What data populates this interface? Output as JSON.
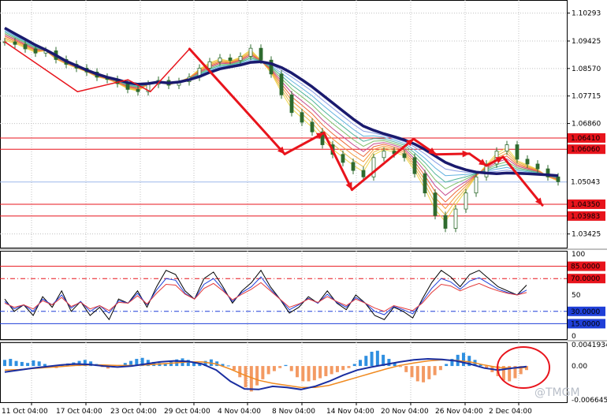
{
  "watermark": "@TMGM",
  "colors": {
    "background": "#ffffff",
    "grid": "#c0c0c0",
    "separator": "#000000",
    "candle": "#2f6b2f",
    "ema_slow": "#1a1a6e",
    "zigzag": "#e8141c",
    "resistance_line": "#e8141c",
    "current_price_line": "#9db8ea",
    "rsi_black": "#000000",
    "rsi_blue": "#1f3fd8",
    "rsi_red": "#e33a3a",
    "macd_hist_pos": "#2f8fe0",
    "macd_hist_neg": "#f39a63",
    "macd_line": "#1a2ea0",
    "macd_signal": "#f08a20",
    "highlight_circle": "#e8141c"
  },
  "chart_data": [
    {
      "type": "candlestick",
      "title": "",
      "x_ticks": [
        "11 Oct 04:00",
        "17 Oct 04:00",
        "23 Oct 04:00",
        "29 Oct 04:00",
        "4 Nov 04:00",
        "8 Nov 04:00",
        "14 Nov 04:00",
        "20 Nov 04:00",
        "26 Nov 04:00",
        "2 Dec 04:00"
      ],
      "y_ticks": [
        "1.10293",
        "1.09425",
        "1.08570",
        "1.07715",
        "1.06860",
        "1.03425"
      ],
      "ylim": [
        1.03,
        1.107
      ],
      "close": [
        1.094,
        1.0932,
        1.0918,
        1.0905,
        1.0912,
        1.0885,
        1.087,
        1.0858,
        1.0846,
        1.083,
        1.0823,
        1.081,
        1.0792,
        1.0785,
        1.0808,
        1.082,
        1.0805,
        1.0816,
        1.083,
        1.0858,
        1.0878,
        1.089,
        1.0882,
        1.0895,
        1.092,
        1.0883,
        1.084,
        1.0775,
        1.072,
        1.069,
        1.066,
        1.062,
        1.059,
        1.0565,
        1.054,
        1.052,
        1.058,
        1.06,
        1.0592,
        1.058,
        1.053,
        1.047,
        1.04,
        1.036,
        1.042,
        1.047,
        1.052,
        1.056,
        1.06,
        1.062,
        1.0575,
        1.056,
        1.0545,
        1.052,
        1.0505
      ],
      "ema_slow": [
        1.0983,
        1.0965,
        1.0948,
        1.093,
        1.0915,
        1.0898,
        1.088,
        1.0866,
        1.0852,
        1.084,
        1.083,
        1.0822,
        1.0813,
        1.0808,
        1.081,
        1.0815,
        1.0812,
        1.0815,
        1.0822,
        1.0832,
        1.0845,
        1.0856,
        1.0862,
        1.0868,
        1.0876,
        1.0878,
        1.0872,
        1.086,
        1.0843,
        1.0822,
        1.08,
        1.0775,
        1.075,
        1.0725,
        1.07,
        1.0678,
        1.0665,
        1.0654,
        1.0645,
        1.0635,
        1.0622,
        1.0605,
        1.0585,
        1.0565,
        1.0552,
        1.0542,
        1.0535,
        1.0532,
        1.053,
        1.0532,
        1.0531,
        1.053,
        1.0528,
        1.0526,
        1.0524
      ],
      "zigzag": [
        [
          0,
          1.094
        ],
        [
          13,
          1.0785
        ],
        [
          22,
          1.0822
        ],
        [
          26,
          1.0785
        ],
        [
          33,
          1.0918
        ],
        [
          50,
          1.0591
        ],
        [
          57,
          1.0657
        ],
        [
          62,
          1.048
        ],
        [
          73,
          1.0638
        ],
        [
          77,
          1.059
        ],
        [
          83,
          1.0592
        ],
        [
          86,
          1.0555
        ],
        [
          89,
          1.0582
        ],
        [
          96,
          1.0432
        ]
      ],
      "horizontal_levels": [
        {
          "label": "1.06410",
          "value": 1.0641,
          "kind": "resistance"
        },
        {
          "label": "1.06060",
          "value": 1.0606,
          "kind": "resistance"
        },
        {
          "label": "1.05043",
          "value": 1.05043,
          "kind": "current"
        },
        {
          "label": "1.04350",
          "value": 1.0435,
          "kind": "support"
        },
        {
          "label": "1.03983",
          "value": 1.03983,
          "kind": "support"
        }
      ]
    },
    {
      "type": "line",
      "title": "",
      "y_ticks": [
        "100",
        "50",
        "0"
      ],
      "ylim": [
        0,
        100
      ],
      "levels": [
        {
          "label": "85.0000",
          "value": 85,
          "style": "solid"
        },
        {
          "label": "70.0000",
          "value": 70,
          "style": "dashed"
        },
        {
          "label": "30.0000",
          "value": 30,
          "style": "dashed"
        },
        {
          "label": "15.0000",
          "value": 15,
          "style": "solid"
        }
      ],
      "series": [
        {
          "values": [
            45,
            30,
            38,
            25,
            48,
            35,
            55,
            30,
            42,
            25,
            35,
            20,
            45,
            40,
            55,
            35,
            60,
            80,
            75,
            55,
            45,
            70,
            78,
            60,
            40,
            55,
            65,
            80,
            60,
            45,
            28,
            35,
            48,
            40,
            55,
            40,
            32,
            50,
            40,
            25,
            20,
            35,
            30,
            22,
            45,
            65,
            80,
            72,
            60,
            75,
            80,
            70,
            60,
            55,
            50,
            62
          ]
        },
        {
          "values": [
            42,
            33,
            38,
            30,
            45,
            38,
            50,
            34,
            42,
            30,
            37,
            28,
            43,
            40,
            52,
            38,
            56,
            70,
            68,
            52,
            45,
            63,
            70,
            57,
            42,
            53,
            60,
            72,
            57,
            45,
            32,
            38,
            46,
            40,
            51,
            41,
            35,
            47,
            40,
            30,
            26,
            36,
            32,
            27,
            42,
            58,
            70,
            66,
            57,
            67,
            71,
            64,
            57,
            53,
            50,
            56
          ]
        },
        {
          "values": [
            40,
            35,
            38,
            33,
            43,
            38,
            47,
            36,
            41,
            33,
            37,
            31,
            41,
            40,
            49,
            39,
            52,
            63,
            62,
            51,
            45,
            58,
            64,
            55,
            44,
            51,
            57,
            65,
            55,
            45,
            35,
            39,
            45,
            41,
            48,
            42,
            37,
            45,
            40,
            34,
            30,
            37,
            34,
            31,
            40,
            53,
            63,
            61,
            55,
            60,
            64,
            59,
            55,
            52,
            50,
            53
          ]
        }
      ]
    },
    {
      "type": "bar",
      "title": "",
      "y_ticks": [
        "0.0041934",
        "0.00",
        "-0.0066455"
      ],
      "ylim": [
        -0.0066455,
        0.0041934
      ],
      "values": [
        0.0012,
        0.0014,
        0.001,
        0.0008,
        0.0006,
        0.0011,
        0.0009,
        0.0004,
        -0.0002,
        -0.0004,
        0.0002,
        0.0005,
        0.0007,
        0.001,
        0.0012,
        0.0009,
        0.0004,
        -0.0002,
        -0.0005,
        -0.0003,
        0.0002,
        0.0006,
        0.001,
        0.0014,
        0.0016,
        0.0012,
        0.0008,
        0.0006,
        0.0004,
        0.0009,
        0.0013,
        0.0015,
        0.0012,
        0.0008,
        0.0006,
        0.001,
        0.0013,
        0.0009,
        0.0004,
        0.0001,
        -0.0008,
        -0.0022,
        -0.0042,
        -0.005,
        -0.0038,
        -0.0026,
        -0.0016,
        -0.001,
        -0.0004,
        0.0002,
        -0.001,
        -0.0022,
        -0.003,
        -0.003,
        -0.0028,
        -0.0024,
        -0.002,
        -0.0016,
        -0.0012,
        -0.0008,
        -0.0004,
        0.0004,
        0.0012,
        0.002,
        0.0028,
        0.003,
        0.0022,
        0.0014,
        0.0006,
        -0.0002,
        -0.0012,
        -0.0022,
        -0.003,
        -0.0032,
        -0.0026,
        -0.0018,
        -0.0008,
        0.0004,
        0.0014,
        0.0022,
        0.0026,
        0.002,
        0.0012,
        0.0004,
        -0.0004,
        -0.0012,
        -0.002,
        -0.0028,
        -0.003,
        -0.0024,
        -0.0016,
        -0.0008
      ],
      "macd_line": [
        -0.0012,
        -0.0008,
        -0.0004,
        -0.0001,
        0.0002,
        0.0004,
        0.0003,
        0.0,
        -0.0002,
        0.0,
        0.0004,
        0.0008,
        0.001,
        0.0009,
        0.0004,
        -0.0008,
        -0.003,
        -0.0045,
        -0.0046,
        -0.004,
        -0.0042,
        -0.0046,
        -0.004,
        -0.003,
        -0.0018,
        -0.0008,
        -0.0002,
        0.0003,
        0.0008,
        0.0012,
        0.0014,
        0.0013,
        0.001,
        0.0004,
        -0.0004,
        -0.0008,
        -0.0004,
        -0.0001
      ],
      "signal_line": [
        -0.0008,
        -0.0007,
        -0.0005,
        -0.0003,
        -0.0001,
        0.0001,
        0.0002,
        0.0002,
        0.0001,
        0.0001,
        0.0002,
        0.0004,
        0.0006,
        0.0008,
        0.0008,
        0.0004,
        -0.0006,
        -0.0018,
        -0.0028,
        -0.0034,
        -0.0038,
        -0.0042,
        -0.0042,
        -0.0038,
        -0.003,
        -0.0022,
        -0.0014,
        -0.0006,
        0.0001,
        0.0006,
        0.001,
        0.0012,
        0.0011,
        0.0008,
        0.0002,
        -0.0003,
        -0.0004,
        -0.0003
      ]
    }
  ]
}
